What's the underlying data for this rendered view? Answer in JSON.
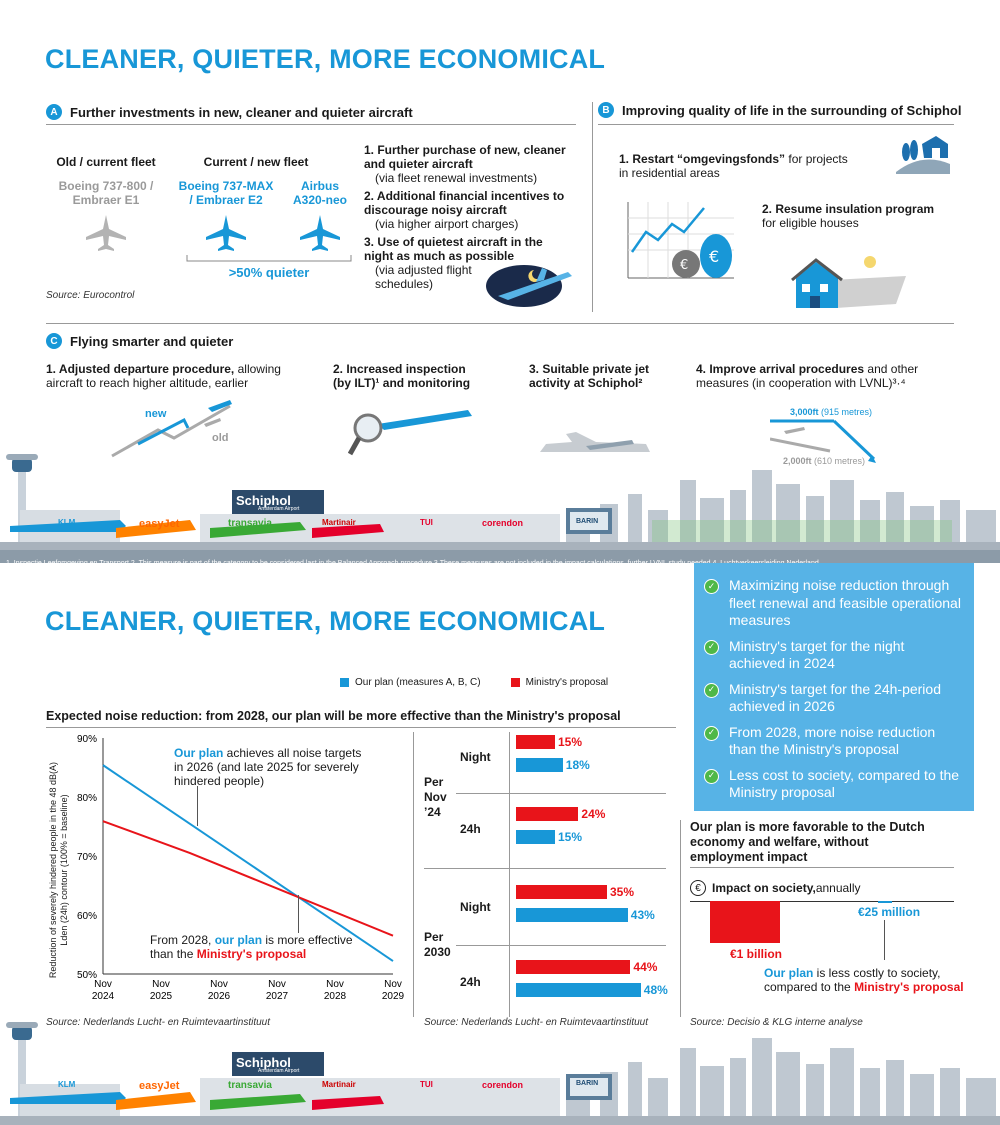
{
  "top": {
    "title": "CLEANER, QUIETER, MORE ECONOMICAL",
    "secA": {
      "badge": "A",
      "title": "Further investments in new, cleaner and quieter aircraft",
      "old_fleet_header": "Old / current fleet",
      "old_fleet_name": "Boeing 737-800 / Embraer E1",
      "new_fleet_header": "Current / new fleet",
      "new_fleet_1": "Boeing 737-MAX / Embraer E2",
      "new_fleet_2": "Airbus A320-neo",
      "quieter": ">50%  quieter",
      "items": [
        {
          "title": "1. Further purchase of new, cleaner and quieter aircraft",
          "sub": "(via fleet renewal investments)"
        },
        {
          "title": "2. Additional financial incentives to discourage noisy aircraft",
          "sub": "(via higher airport charges)"
        },
        {
          "title": "3. Use of quietest aircraft in the night as much as possible",
          "sub": "(via adjusted flight schedules)"
        }
      ],
      "source": "Source: Eurocontrol"
    },
    "secB": {
      "badge": "B",
      "title": "Improving quality of life in the surrounding of Schiphol",
      "item1_title": "1. Restart “omgevingsfonds”",
      "item1_rest": " for projects in residential areas",
      "item2_title": "2. Resume insulation program",
      "item2_sub": "for eligible houses"
    },
    "secC": {
      "badge": "C",
      "title": "Flying smarter and quieter",
      "item1_bold": "1. Adjusted  departure procedure,",
      "item1_rest": " allowing aircraft to reach higher altitude,  earlier",
      "item2": "2. Increased inspection (by ILT)¹ and monitoring",
      "item3": "3. Suitable private jet activity at Schiphol²",
      "item4_bold": "4. Improve arrival procedures",
      "item4_rest": " and other measures (in cooperation with LVNL)³·⁴",
      "new_label": "new",
      "old_label": "old",
      "alt_high_bold": "3,000ft",
      "alt_high_rest": " (915 metres)",
      "alt_low_bold": "2,000ft",
      "alt_low_rest": " (610 metres)"
    },
    "footnote": "1.     Inspectie Leefomgeving en Transport   2. This measure is part of the category to be considered last in the Balanced Approach procedure    3.These measures are not included in the impact calculations, further LVNL study needed  4. Luchtverkeersleiding Nederland"
  },
  "skyline": {
    "schiphol": "Schiphol",
    "schiphol_sub": "Amsterdam Airport",
    "klm": "KLM",
    "easyjet": "easyJet",
    "transavia": "transavia",
    "martinair": "Martinair",
    "tui": "TUI",
    "corendon": "corendon",
    "barin": "BARIN"
  },
  "bottom": {
    "title": "CLEANER, QUIETER, MORE ECONOMICAL",
    "panel": [
      "Maximizing noise reduction through fleet renewal and feasible operational measures",
      "Ministry's target for the night achieved in 2024",
      "Ministry's target for the 24h-period achieved in 2026",
      "From 2028, more noise reduction than the Ministry's proposal",
      "Less cost to society, compared to the Ministry proposal"
    ],
    "legend_plan": "Our plan (measures  A,  B,  C)",
    "legend_ministry": "Ministry's proposal",
    "chart_title": "Expected noise reduction: from 2028, our plan will be more effective than the Ministry's proposal",
    "y_axis_label": "Reduction of severely hindered people in the 48 dB(A) Lden (24h) contour (100% = baseline)",
    "annot1_blue": "Our plan",
    "annot1_rest": " achieves all noise targets in 2026 (and late 2025 for severely hindered people)",
    "annot2_pre": "From 2028,  ",
    "annot2_blue": "our plan",
    "annot2_mid": " is more effective than the ",
    "annot2_red": "Ministry's proposal",
    "source1": "Source: Nederlands  Lucht- en  Ruimtevaartinstituut",
    "per_nov24": "Per Nov ’24",
    "per_2030": "Per 2030",
    "night": "Night",
    "h24": "24h",
    "source2": "Source: Nederlands  Lucht- en  Ruimtevaartinstituut",
    "econ_title": "Our plan is more favorable to the Dutch economy and welfare, without employment impact",
    "impact_bold": "Impact on society,",
    "impact_rest": " annually",
    "impact_euro": "€",
    "cost_ministry": "€1 billion",
    "cost_plan": "€25 million",
    "cost_note_blue": "Our plan",
    "cost_note_mid": " is less costly to society, compared to the ",
    "cost_note_red": "Ministry's proposal",
    "source3": "Source: Decisio & KLG interne analyse"
  },
  "colors": {
    "blue": "#1897d7",
    "red": "#e8141a",
    "panel": "#57b3e6"
  },
  "chart_data": [
    {
      "type": "line",
      "title": "Expected noise reduction: from 2028, our plan will be more effective than the Ministry's proposal",
      "ylabel": "Reduction of severely hindered people in the 48 dB(A) Lden (24h) contour (100% = baseline)",
      "xlabel": "",
      "x_ticks": [
        "Nov 2024",
        "Nov 2025",
        "Nov 2026",
        "Nov 2027",
        "Nov 2028",
        "Nov 2029"
      ],
      "y_ticks": [
        "90%",
        "80%",
        "70%",
        "60%",
        "50%"
      ],
      "ylim": [
        50,
        90
      ],
      "xlim": [
        0,
        5
      ],
      "series": [
        {
          "name": "Our plan (measures A, B, C)",
          "color": "#1897d7",
          "x": [
            0,
            5
          ],
          "y": [
            85.4,
            52.2
          ]
        },
        {
          "name": "Ministry's proposal",
          "color": "#e8141a",
          "x": [
            0,
            1.5,
            5
          ],
          "y": [
            75.9,
            70.5,
            56.5
          ]
        }
      ]
    },
    {
      "type": "bar",
      "orientation": "horizontal",
      "groups": [
        {
          "group": "Per Nov ’24",
          "category": "Night",
          "ministry": 15,
          "plan": 18
        },
        {
          "group": "Per Nov ’24",
          "category": "24h",
          "ministry": 24,
          "plan": 15
        },
        {
          "group": "Per 2030",
          "category": "Night",
          "ministry": 35,
          "plan": 43
        },
        {
          "group": "Per 2030",
          "category": "24h",
          "ministry": 44,
          "plan": 48
        }
      ],
      "series_names": [
        "Ministry's proposal",
        "Our plan (measures A, B, C)"
      ],
      "value_suffix": "%"
    },
    {
      "type": "bar",
      "title": "Impact on society, annually",
      "categories": [
        "Ministry's proposal",
        "Our plan"
      ],
      "values_eur_million": [
        1000,
        25
      ],
      "labels": [
        "€1 billion",
        "€25 million"
      ]
    }
  ]
}
